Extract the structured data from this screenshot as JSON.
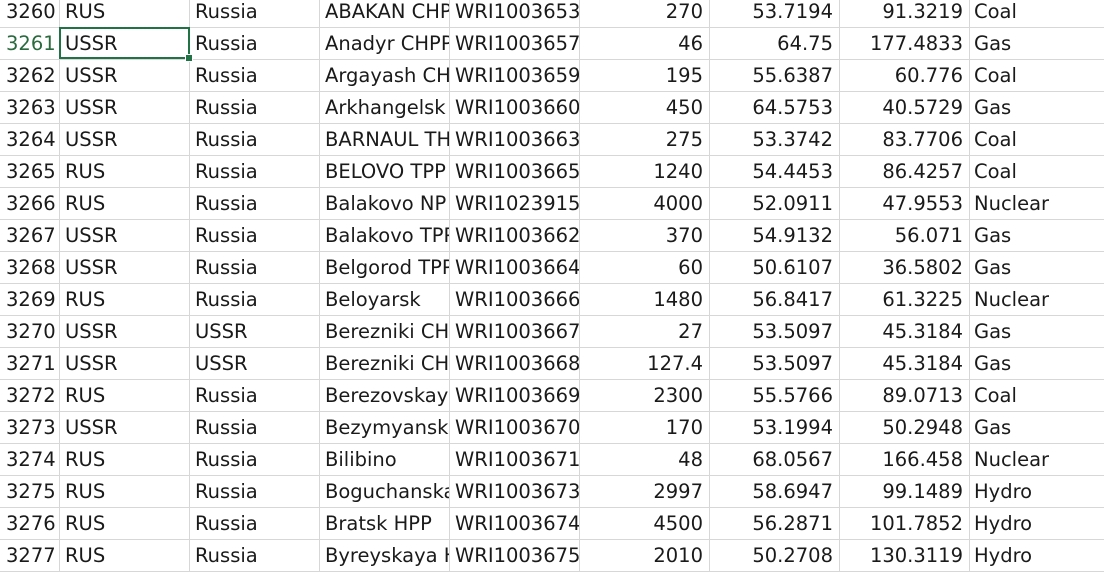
{
  "sheet": {
    "selected_row": "3261",
    "selected_column": "A",
    "colors": {
      "selection": "#217346",
      "gridline": "#d7d7d7"
    },
    "rows": [
      {
        "num": "3260",
        "a": "RUS",
        "b": "Russia",
        "c": "ABAKAN CHP",
        "d": "WRI1003653",
        "e": "270",
        "f": "53.7194",
        "g": "91.3219",
        "h": "Coal"
      },
      {
        "num": "3261",
        "a": "USSR",
        "b": "Russia",
        "c": "Anadyr CHPP",
        "d": "WRI1003657",
        "e": "46",
        "f": "64.75",
        "g": "177.4833",
        "h": "Gas"
      },
      {
        "num": "3262",
        "a": "USSR",
        "b": "Russia",
        "c": "Argayash CH",
        "d": "WRI1003659",
        "e": "195",
        "f": "55.6387",
        "g": "60.776",
        "h": "Coal"
      },
      {
        "num": "3263",
        "a": "USSR",
        "b": "Russia",
        "c": "Arkhangelsk",
        "d": "WRI1003660",
        "e": "450",
        "f": "64.5753",
        "g": "40.5729",
        "h": "Gas"
      },
      {
        "num": "3264",
        "a": "USSR",
        "b": "Russia",
        "c": "BARNAUL TH",
        "d": "WRI1003663",
        "e": "275",
        "f": "53.3742",
        "g": "83.7706",
        "h": "Coal"
      },
      {
        "num": "3265",
        "a": "RUS",
        "b": "Russia",
        "c": "BELOVO TPP",
        "d": "WRI1003665",
        "e": "1240",
        "f": "54.4453",
        "g": "86.4257",
        "h": "Coal"
      },
      {
        "num": "3266",
        "a": "RUS",
        "b": "Russia",
        "c": "Balakovo NP",
        "d": "WRI1023915",
        "e": "4000",
        "f": "52.0911",
        "g": "47.9553",
        "h": "Nuclear"
      },
      {
        "num": "3267",
        "a": "USSR",
        "b": "Russia",
        "c": "Balakovo TPP",
        "d": "WRI1003662",
        "e": "370",
        "f": "54.9132",
        "g": "56.071",
        "h": "Gas"
      },
      {
        "num": "3268",
        "a": "USSR",
        "b": "Russia",
        "c": "Belgorod TPP",
        "d": "WRI1003664",
        "e": "60",
        "f": "50.6107",
        "g": "36.5802",
        "h": "Gas"
      },
      {
        "num": "3269",
        "a": "RUS",
        "b": "Russia",
        "c": "Beloyarsk",
        "d": "WRI1003666",
        "e": "1480",
        "f": "56.8417",
        "g": "61.3225",
        "h": "Nuclear"
      },
      {
        "num": "3270",
        "a": "USSR",
        "b": "USSR",
        "c": "Berezniki CH",
        "d": "WRI1003667",
        "e": "27",
        "f": "53.5097",
        "g": "45.3184",
        "h": "Gas"
      },
      {
        "num": "3271",
        "a": "USSR",
        "b": "USSR",
        "c": "Berezniki CH",
        "d": "WRI1003668",
        "e": "127.4",
        "f": "53.5097",
        "g": "45.3184",
        "h": "Gas"
      },
      {
        "num": "3272",
        "a": "RUS",
        "b": "Russia",
        "c": "Berezovskaya",
        "d": "WRI1003669",
        "e": "2300",
        "f": "55.5766",
        "g": "89.0713",
        "h": "Coal"
      },
      {
        "num": "3273",
        "a": "USSR",
        "b": "Russia",
        "c": "Bezymyanska",
        "d": "WRI1003670",
        "e": "170",
        "f": "53.1994",
        "g": "50.2948",
        "h": "Gas"
      },
      {
        "num": "3274",
        "a": "RUS",
        "b": "Russia",
        "c": "Bilibino",
        "d": "WRI1003671",
        "e": "48",
        "f": "68.0567",
        "g": "166.458",
        "h": "Nuclear"
      },
      {
        "num": "3275",
        "a": "RUS",
        "b": "Russia",
        "c": "Boguchanska",
        "d": "WRI1003673",
        "e": "2997",
        "f": "58.6947",
        "g": "99.1489",
        "h": "Hydro"
      },
      {
        "num": "3276",
        "a": "RUS",
        "b": "Russia",
        "c": "Bratsk HPP",
        "d": "WRI1003674",
        "e": "4500",
        "f": "56.2871",
        "g": "101.7852",
        "h": "Hydro"
      },
      {
        "num": "3277",
        "a": "RUS",
        "b": "Russia",
        "c": "Byreyskaya H",
        "d": "WRI1003675",
        "e": "2010",
        "f": "50.2708",
        "g": "130.3119",
        "h": "Hydro"
      }
    ]
  }
}
